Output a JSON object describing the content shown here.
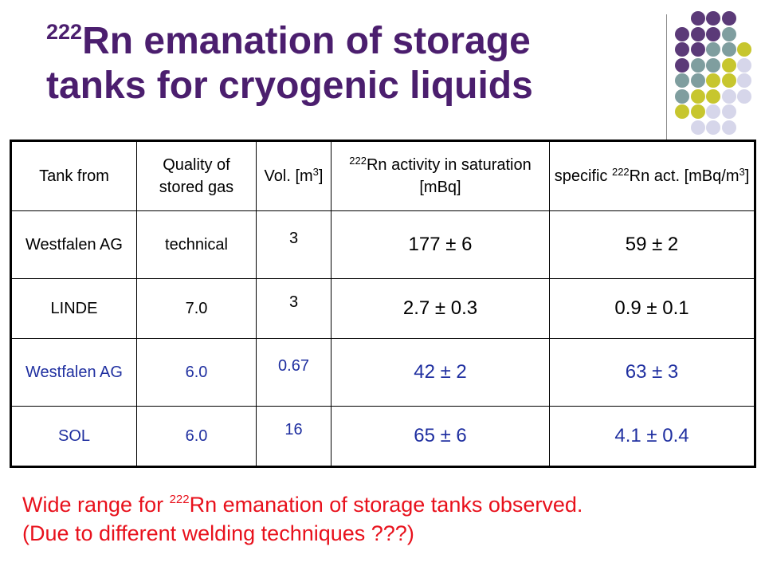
{
  "title": {
    "sup": "222",
    "line1_rest": "Rn emanation of storage",
    "line2": "tanks for cryogenic liquids"
  },
  "decor_colors": {
    "purple": "#5b3a78",
    "teal": "#7f9e9f",
    "olive": "#c7c62e",
    "lavender": "#d6d6ea"
  },
  "table": {
    "headers": {
      "tank": "Tank from",
      "quality": "Quality of stored gas",
      "vol_pre": "Vol. [m",
      "vol_sup": "3",
      "vol_post": "]",
      "act_sup": "222",
      "act_rest": "Rn activity in saturation [mBq]",
      "spec_pre": "specific ",
      "spec_sup": "222",
      "spec_mid": "Rn act. [mBq/m",
      "spec_sup2": "3",
      "spec_post": "]"
    },
    "rows": [
      {
        "tank": "Westfalen AG",
        "quality": "technical",
        "vol": "3",
        "activity": "177 ± 6",
        "specific": "59 ± 2"
      },
      {
        "tank": "LINDE",
        "quality": "7.0",
        "vol": "3",
        "activity": "2.7 ± 0.3",
        "specific": "0.9 ± 0.1"
      },
      {
        "tank": "Westfalen AG",
        "quality": "6.0",
        "vol": "0.67",
        "activity": "42 ± 2",
        "specific": "63 ± 3"
      },
      {
        "tank": "SOL",
        "quality": "6.0",
        "vol": "16",
        "activity": "65 ± 6",
        "specific": "4.1 ± 0.4"
      }
    ]
  },
  "note": {
    "pre": "Wide range for ",
    "sup": "222",
    "rest": "Rn emanation of storage tanks observed.",
    "line2": "(Due to different welding techniques ???)"
  }
}
